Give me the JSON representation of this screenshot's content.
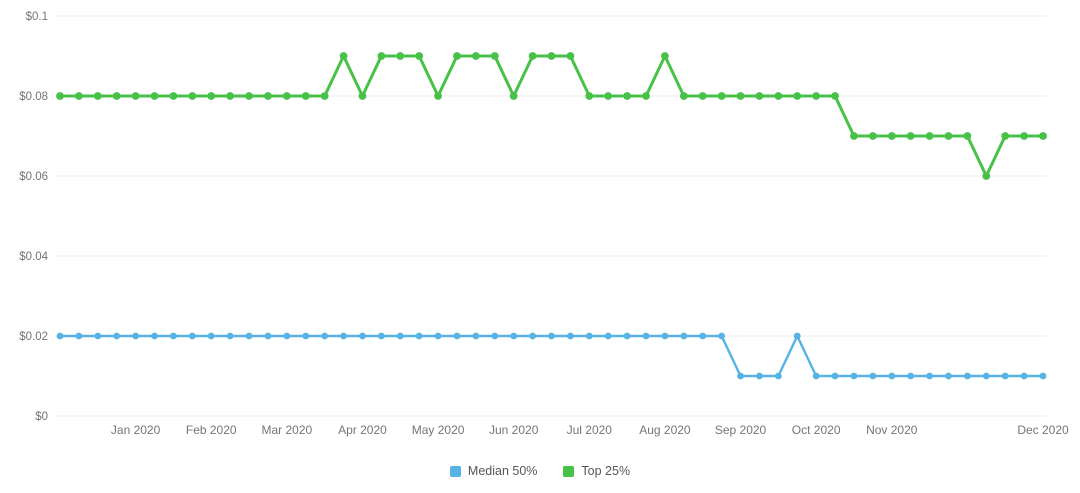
{
  "chart_data": {
    "type": "line",
    "title": "",
    "grid": "horizontal",
    "legend_position": "bottom-center",
    "background_color": "#ffffff",
    "gridline_color": "#ededed",
    "axis_label_color": "#757575",
    "y_axis": {
      "range": [
        0,
        0.1
      ],
      "tick_values": [
        0,
        0.02,
        0.04,
        0.06,
        0.08,
        0.1
      ],
      "tick_labels": [
        "$0",
        "$0.02",
        "$0.04",
        "$0.06",
        "$0.08",
        "$0.1"
      ]
    },
    "x_axis": {
      "tick_labels": [
        "Jan 2020",
        "Feb 2020",
        "Mar 2020",
        "Apr 2020",
        "May 2020",
        "Jun 2020",
        "Jul 2020",
        "Aug 2020",
        "Sep 2020",
        "Oct 2020",
        "Nov 2020",
        "Dec 2020"
      ],
      "tick_point_indices": [
        4,
        8,
        12,
        16,
        20,
        24,
        28,
        32,
        36,
        40,
        44,
        52
      ],
      "point_count": 53
    },
    "series": [
      {
        "name": "Median 50%",
        "color": "#57b3e4",
        "values": [
          0.02,
          0.02,
          0.02,
          0.02,
          0.02,
          0.02,
          0.02,
          0.02,
          0.02,
          0.02,
          0.02,
          0.02,
          0.02,
          0.02,
          0.02,
          0.02,
          0.02,
          0.02,
          0.02,
          0.02,
          0.02,
          0.02,
          0.02,
          0.02,
          0.02,
          0.02,
          0.02,
          0.02,
          0.02,
          0.02,
          0.02,
          0.02,
          0.02,
          0.02,
          0.02,
          0.02,
          0.01,
          0.01,
          0.01,
          0.02,
          0.01,
          0.01,
          0.01,
          0.01,
          0.01,
          0.01,
          0.01,
          0.01,
          0.01,
          0.01,
          0.01,
          0.01,
          0.01
        ]
      },
      {
        "name": "Top 25%",
        "color": "#47c147",
        "values": [
          0.08,
          0.08,
          0.08,
          0.08,
          0.08,
          0.08,
          0.08,
          0.08,
          0.08,
          0.08,
          0.08,
          0.08,
          0.08,
          0.08,
          0.08,
          0.09,
          0.08,
          0.09,
          0.09,
          0.09,
          0.08,
          0.09,
          0.09,
          0.09,
          0.08,
          0.09,
          0.09,
          0.09,
          0.08,
          0.08,
          0.08,
          0.08,
          0.09,
          0.08,
          0.08,
          0.08,
          0.08,
          0.08,
          0.08,
          0.08,
          0.08,
          0.08,
          0.07,
          0.07,
          0.07,
          0.07,
          0.07,
          0.07,
          0.07,
          0.06,
          0.07,
          0.07,
          0.07
        ]
      }
    ]
  },
  "legend": {
    "items": [
      {
        "label": "Median 50%",
        "color": "#57b3e4"
      },
      {
        "label": "Top 25%",
        "color": "#47c147"
      }
    ]
  }
}
